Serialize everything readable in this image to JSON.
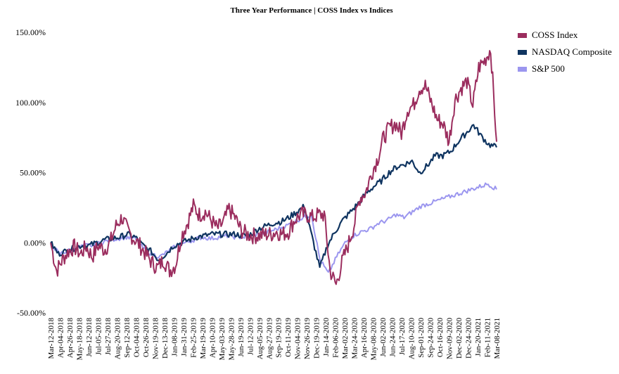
{
  "chart_data": {
    "type": "line",
    "title": "Three Year Performance | COSS Index vs Indices",
    "xlabel": "",
    "ylabel": "",
    "ylim": [
      -50,
      150
    ],
    "y_ticks": [
      "150.00%",
      "100.00%",
      "50.00%",
      "0.00%",
      "-50.00%"
    ],
    "y_tick_values": [
      150,
      100,
      50,
      0,
      -50
    ],
    "x_tick_labels": [
      "Mar-12-2018",
      "Apr-04-2018",
      "Apr-26-2018",
      "May-18-2018",
      "Jun-12-2018",
      "Jul-05-2018",
      "Jul-27-2018",
      "Aug-20-2018",
      "Sep-12-2018",
      "Oct-04-2018",
      "Oct-26-2018",
      "Nov-19-2018",
      "Dec-13-2018",
      "Jan-08-2019",
      "Jan-31-2019",
      "Feb-25-2019",
      "Mar-19-2019",
      "Apr-10-2019",
      "May-03-2019",
      "May-28-2019",
      "Jun-19-2019",
      "Jul-12-2019",
      "Aug-05-2019",
      "Aug-27-2019",
      "Sep-19-2019",
      "Oct-11-2019",
      "Nov-04-2019",
      "Nov-26-2019",
      "Dec-19-2019",
      "Jan-14-2020",
      "Feb-06-2020",
      "Mar-02-2020",
      "Mar-24-2020",
      "Apr-16-2020",
      "May-08-2020",
      "Jun-02-2020",
      "Jun-24-2020",
      "Jul-17-2020",
      "Aug-10-2020",
      "Sep-01-2020",
      "Sep-24-2020",
      "Oct-16-2020",
      "Nov-09-2020",
      "Dec-02-2020",
      "Dec-24-2020",
      "Jan-20-2021",
      "Feb-11-2021",
      "Mar-08-2021"
    ],
    "legend_position": "top-right",
    "grid": false,
    "series": [
      {
        "name": "COSS Index",
        "color": "#9b2d5e",
        "values": [
          0,
          -20,
          -12,
          -6,
          -3,
          -8,
          -3,
          -10,
          -2,
          -5,
          0,
          12,
          18,
          8,
          3,
          -2,
          -8,
          -14,
          -18,
          -12,
          -20,
          -16,
          5,
          14,
          26,
          20,
          22,
          16,
          10,
          14,
          24,
          18,
          9,
          6,
          5,
          5,
          6,
          6,
          8,
          6,
          8,
          16,
          20,
          20,
          18,
          20,
          20,
          -20,
          -30,
          -14,
          -2,
          12,
          32,
          36,
          50,
          60,
          75,
          82,
          85,
          78,
          95,
          98,
          110,
          112,
          100,
          88,
          85,
          72,
          102,
          110,
          115,
          98,
          125,
          130,
          138,
          72
        ]
      },
      {
        "name": "NASDAQ Composite",
        "color": "#0f3460",
        "values": [
          0,
          -8,
          -6,
          -4,
          -2,
          -2,
          0,
          2,
          3,
          4,
          6,
          4,
          -2,
          -6,
          -12,
          -8,
          -2,
          0,
          2,
          4,
          5,
          6,
          6,
          6,
          6,
          5,
          6,
          10,
          12,
          14,
          15,
          18,
          22,
          26,
          4,
          -18,
          -2,
          8,
          16,
          22,
          28,
          35,
          40,
          44,
          50,
          54,
          56,
          58,
          50,
          55,
          62,
          62,
          65,
          72,
          78,
          84,
          76,
          70,
          68
        ]
      },
      {
        "name": "S&P 500",
        "color": "#9b96ef",
        "values": [
          0,
          -8,
          -6,
          -4,
          -2,
          -2,
          0,
          2,
          3,
          4,
          3,
          -4,
          -8,
          -10,
          -6,
          -2,
          0,
          2,
          4,
          3,
          4,
          5,
          4,
          4,
          5,
          6,
          8,
          10,
          12,
          15,
          18,
          20,
          -12,
          -22,
          -10,
          0,
          5,
          8,
          10,
          14,
          16,
          20,
          18,
          22,
          26,
          28,
          30,
          32,
          34,
          36,
          38,
          40,
          42,
          38
        ]
      }
    ]
  }
}
